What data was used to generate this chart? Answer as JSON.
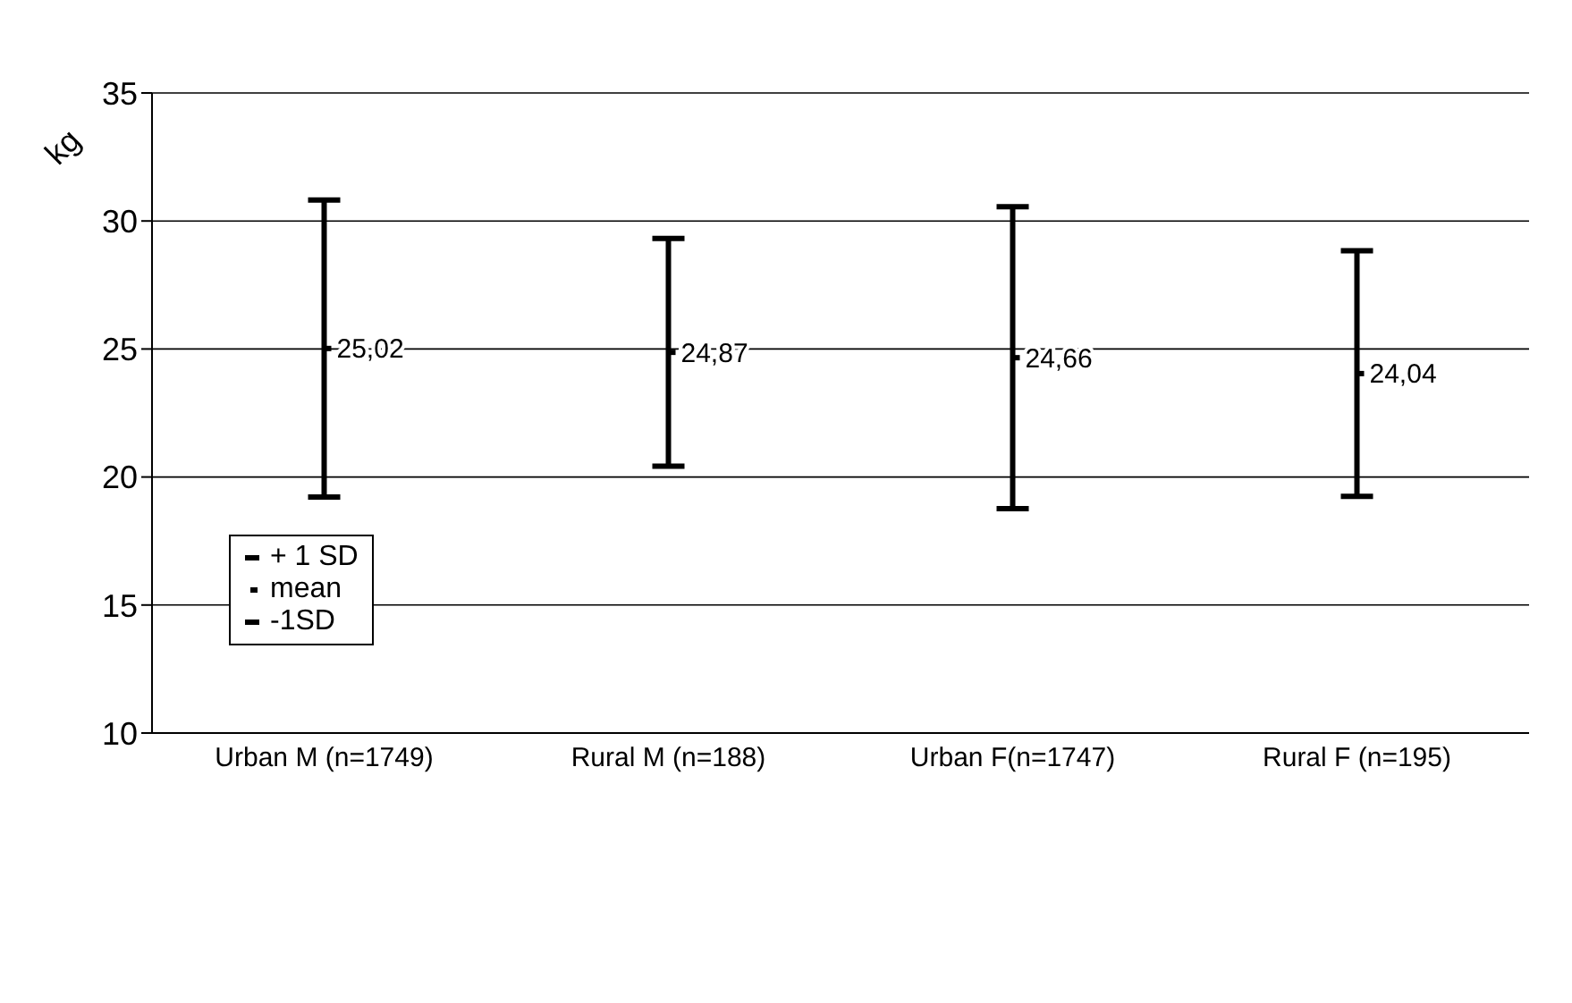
{
  "chart_data": {
    "type": "scatter",
    "ylabel": "kg",
    "categories": [
      "Urban M (n=1749)",
      "Rural M (n=188)",
      "Urban F(n=1747)",
      "Rural F (n=195)"
    ],
    "series": [
      {
        "color": "#000000",
        "values": [
          25.02,
          24.87,
          24.66,
          24.04
        ],
        "errors": [
          5.8,
          4.45,
          5.9,
          4.8
        ],
        "value_labels": [
          "25,02",
          "24,87",
          "24,66",
          "24,04"
        ]
      }
    ],
    "ylim": [
      10,
      35
    ],
    "yticks": [
      10,
      15,
      20,
      25,
      30,
      35
    ],
    "grid": "y",
    "annotations": [
      "+ 1 SD",
      "mean",
      "-1SD"
    ]
  }
}
